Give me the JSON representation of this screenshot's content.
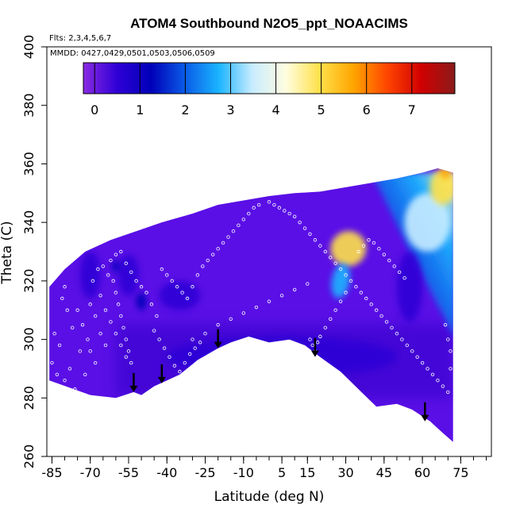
{
  "chart_data": {
    "type": "heatmap",
    "title": "ATOM4 Southbound N2O5_ppt_NOAACIMS",
    "flights_text": "Flts: 2,3,4,5,6,7",
    "mmdd_text": "MMDD: 0427,0429,0501,0503,0506,0509",
    "xlabel": "Latitude (deg N)",
    "ylabel": "Theta (C)",
    "xlim": [
      -87,
      87
    ],
    "ylim": [
      260,
      400
    ],
    "x_ticks": [
      -85,
      -70,
      -55,
      -40,
      -25,
      -10,
      5,
      15,
      30,
      45,
      60,
      75
    ],
    "x_tick_labels": [
      "-85",
      "-70",
      "-55",
      "-40",
      "-25",
      "-10",
      "5",
      "15",
      "30",
      "45",
      "60",
      "75"
    ],
    "y_ticks": [
      260,
      280,
      300,
      320,
      340,
      360,
      380,
      400
    ],
    "y_tick_labels": [
      "260",
      "280",
      "300",
      "320",
      "340",
      "360",
      "380",
      "400"
    ],
    "colorbar": {
      "ticks": [
        0,
        1,
        2,
        3,
        4,
        5,
        6,
        7
      ],
      "tick_labels": [
        "0",
        "1",
        "2",
        "3",
        "4",
        "5",
        "6",
        "7"
      ],
      "range": [
        -0.25,
        7.95
      ],
      "colors": [
        "#8a2be2",
        "#2f00d6",
        "#0000b8",
        "#0a5be6",
        "#1ab4ff",
        "#c8ecff",
        "#fffde0",
        "#ffe14a",
        "#ffa500",
        "#ff4500",
        "#d00000",
        "#8b1a1a"
      ]
    },
    "domain_bottom": [
      [
        -86,
        286
      ],
      [
        -70,
        281
      ],
      [
        -60,
        280
      ],
      [
        -53,
        282
      ],
      [
        -50,
        281
      ],
      [
        -45,
        284
      ],
      [
        -40,
        286
      ],
      [
        -35,
        288
      ],
      [
        -28,
        293
      ],
      [
        -20,
        297
      ],
      [
        -15,
        299
      ],
      [
        -8,
        301
      ],
      [
        0,
        299
      ],
      [
        8,
        300
      ],
      [
        14,
        298
      ],
      [
        20,
        294
      ],
      [
        28,
        289
      ],
      [
        35,
        283
      ],
      [
        42,
        277
      ],
      [
        50,
        278
      ],
      [
        56,
        276
      ],
      [
        63,
        272
      ],
      [
        68,
        268
      ],
      [
        72,
        265
      ]
    ],
    "domain_top": [
      [
        -86,
        318
      ],
      [
        -80,
        324
      ],
      [
        -72,
        330
      ],
      [
        -62,
        334
      ],
      [
        -52,
        337
      ],
      [
        -42,
        340
      ],
      [
        -30,
        343
      ],
      [
        -20,
        346
      ],
      [
        -10,
        347.5
      ],
      [
        0,
        349
      ],
      [
        10,
        350
      ],
      [
        20,
        350.5
      ],
      [
        30,
        352
      ],
      [
        40,
        353.5
      ],
      [
        50,
        355
      ],
      [
        60,
        357
      ],
      [
        66,
        358.5
      ],
      [
        72,
        357
      ]
    ],
    "features": [
      {
        "lat": 31,
        "theta": 331,
        "value": 4.6,
        "rx": 7,
        "ry": 6,
        "angle": -35
      },
      {
        "lat": 28,
        "theta": 320,
        "value": 3.0,
        "rx": 3.5,
        "ry": 6,
        "angle": 10
      },
      {
        "lat": 62,
        "theta": 340,
        "value": 3.6,
        "rx": 9,
        "ry": 10,
        "angle": 0
      },
      {
        "lat": 68,
        "theta": 352,
        "value": 4.8,
        "rx": 5,
        "ry": 6,
        "angle": 0
      },
      {
        "lat": 69,
        "theta": 357,
        "value": 5.6,
        "rx": 2,
        "ry": 2,
        "angle": 0
      },
      {
        "lat": 5,
        "theta": 294,
        "value": 0.55,
        "rx": 45,
        "ry": 7,
        "angle": 0
      },
      {
        "lat": -55,
        "theta": 322,
        "value": 0.8,
        "rx": 4,
        "ry": 7,
        "angle": 0
      },
      {
        "lat": -70,
        "theta": 322,
        "value": 0.7,
        "rx": 4,
        "ry": 8,
        "angle": 0
      },
      {
        "lat": -35,
        "theta": 315,
        "value": 0.6,
        "rx": 8,
        "ry": 5,
        "angle": 0
      },
      {
        "lat": 55,
        "theta": 318,
        "value": 0.5,
        "rx": 5,
        "ry": 12,
        "angle": 0
      },
      {
        "lat": -60,
        "theta": 325,
        "value": 1.6,
        "rx": 1.5,
        "ry": 2,
        "angle": 0
      },
      {
        "lat": -50,
        "theta": 313,
        "value": 1.2,
        "rx": 2,
        "ry": 3,
        "angle": 0
      }
    ],
    "arrows": [
      {
        "lat": -53,
        "theta": 282
      },
      {
        "lat": -42,
        "theta": 285
      },
      {
        "lat": -20,
        "theta": 297
      },
      {
        "lat": 18,
        "theta": 294
      },
      {
        "lat": 61,
        "theta": 272
      }
    ],
    "points": [
      [
        -80,
        318
      ],
      [
        -75,
        310
      ],
      [
        -73,
        305
      ],
      [
        -71,
        300
      ],
      [
        -70,
        296
      ],
      [
        -68,
        292
      ],
      [
        -72,
        288
      ],
      [
        -78,
        290
      ],
      [
        -82,
        298
      ],
      [
        -84,
        302
      ],
      [
        -65,
        325
      ],
      [
        -63,
        322
      ],
      [
        -61,
        320
      ],
      [
        -60,
        316
      ],
      [
        -59,
        312
      ],
      [
        -58,
        308
      ],
      [
        -57,
        304
      ],
      [
        -56,
        300
      ],
      [
        -55,
        296
      ],
      [
        -54,
        292
      ],
      [
        -62,
        327
      ],
      [
        -60,
        329
      ],
      [
        -58,
        330
      ],
      [
        -56,
        326
      ],
      [
        -54,
        323
      ],
      [
        -52,
        320
      ],
      [
        -50,
        318
      ],
      [
        -48,
        316
      ],
      [
        -46,
        312
      ],
      [
        -44,
        308
      ],
      [
        -66,
        315
      ],
      [
        -64,
        310
      ],
      [
        -62,
        306
      ],
      [
        -60,
        302
      ],
      [
        -58,
        298
      ],
      [
        -56,
        294
      ],
      [
        -70,
        312
      ],
      [
        -68,
        308
      ],
      [
        -66,
        302
      ],
      [
        -64,
        298
      ],
      [
        -42,
        324
      ],
      [
        -40,
        322
      ],
      [
        -38,
        320
      ],
      [
        -36,
        318
      ],
      [
        -34,
        316
      ],
      [
        -32,
        314
      ],
      [
        -30,
        318
      ],
      [
        -28,
        322
      ],
      [
        -26,
        325
      ],
      [
        -24,
        327
      ],
      [
        -22,
        329
      ],
      [
        -20,
        331
      ],
      [
        -18,
        333
      ],
      [
        -16,
        335
      ],
      [
        -14,
        337
      ],
      [
        -12,
        339
      ],
      [
        -10,
        341
      ],
      [
        -8,
        343
      ],
      [
        -6,
        345
      ],
      [
        -4,
        346
      ],
      [
        0,
        347
      ],
      [
        2,
        346
      ],
      [
        4,
        345
      ],
      [
        6,
        344
      ],
      [
        8,
        343
      ],
      [
        10,
        342
      ],
      [
        12,
        340
      ],
      [
        14,
        338
      ],
      [
        16,
        336
      ],
      [
        18,
        334
      ],
      [
        20,
        332
      ],
      [
        22,
        330
      ],
      [
        24,
        328
      ],
      [
        26,
        326
      ],
      [
        28,
        324
      ],
      [
        30,
        322
      ],
      [
        32,
        320
      ],
      [
        34,
        318
      ],
      [
        36,
        316
      ],
      [
        38,
        314
      ],
      [
        40,
        312
      ],
      [
        42,
        310
      ],
      [
        44,
        308
      ],
      [
        46,
        306
      ],
      [
        48,
        304
      ],
      [
        50,
        302
      ],
      [
        52,
        300
      ],
      [
        54,
        298
      ],
      [
        56,
        296
      ],
      [
        58,
        294
      ],
      [
        60,
        292
      ],
      [
        62,
        290
      ],
      [
        64,
        288
      ],
      [
        66,
        286
      ],
      [
        68,
        284
      ],
      [
        70,
        282
      ],
      [
        71,
        290
      ],
      [
        71,
        296
      ],
      [
        70,
        300
      ],
      [
        69,
        305
      ],
      [
        -30,
        300
      ],
      [
        -25,
        302
      ],
      [
        -20,
        305
      ],
      [
        -15,
        307
      ],
      [
        -10,
        309
      ],
      [
        -5,
        311
      ],
      [
        0,
        313
      ],
      [
        5,
        315
      ],
      [
        10,
        317
      ],
      [
        15,
        319
      ],
      [
        16,
        300
      ],
      [
        17,
        298
      ],
      [
        18,
        296
      ],
      [
        19,
        299
      ],
      [
        20,
        301
      ],
      [
        22,
        304
      ],
      [
        24,
        307
      ],
      [
        26,
        310
      ],
      [
        28,
        313
      ],
      [
        30,
        316
      ],
      [
        35,
        330
      ],
      [
        37,
        332
      ],
      [
        39,
        334
      ],
      [
        41,
        333
      ],
      [
        43,
        331
      ],
      [
        45,
        329
      ],
      [
        47,
        327
      ],
      [
        49,
        325
      ],
      [
        51,
        323
      ],
      [
        53,
        321
      ],
      [
        -45,
        303
      ],
      [
        -43,
        300
      ],
      [
        -41,
        297
      ],
      [
        -39,
        294
      ],
      [
        -37,
        291
      ],
      [
        -35,
        289
      ],
      [
        -33,
        292
      ],
      [
        -31,
        295
      ],
      [
        -29,
        297
      ],
      [
        -27,
        299
      ],
      [
        -85,
        292
      ],
      [
        -83,
        288
      ],
      [
        -80,
        286
      ],
      [
        -76,
        283
      ],
      [
        -74,
        296
      ],
      [
        -77,
        304
      ],
      [
        -79,
        310
      ],
      [
        -81,
        314
      ],
      [
        -69,
        320
      ],
      [
        -67,
        324
      ]
    ]
  }
}
